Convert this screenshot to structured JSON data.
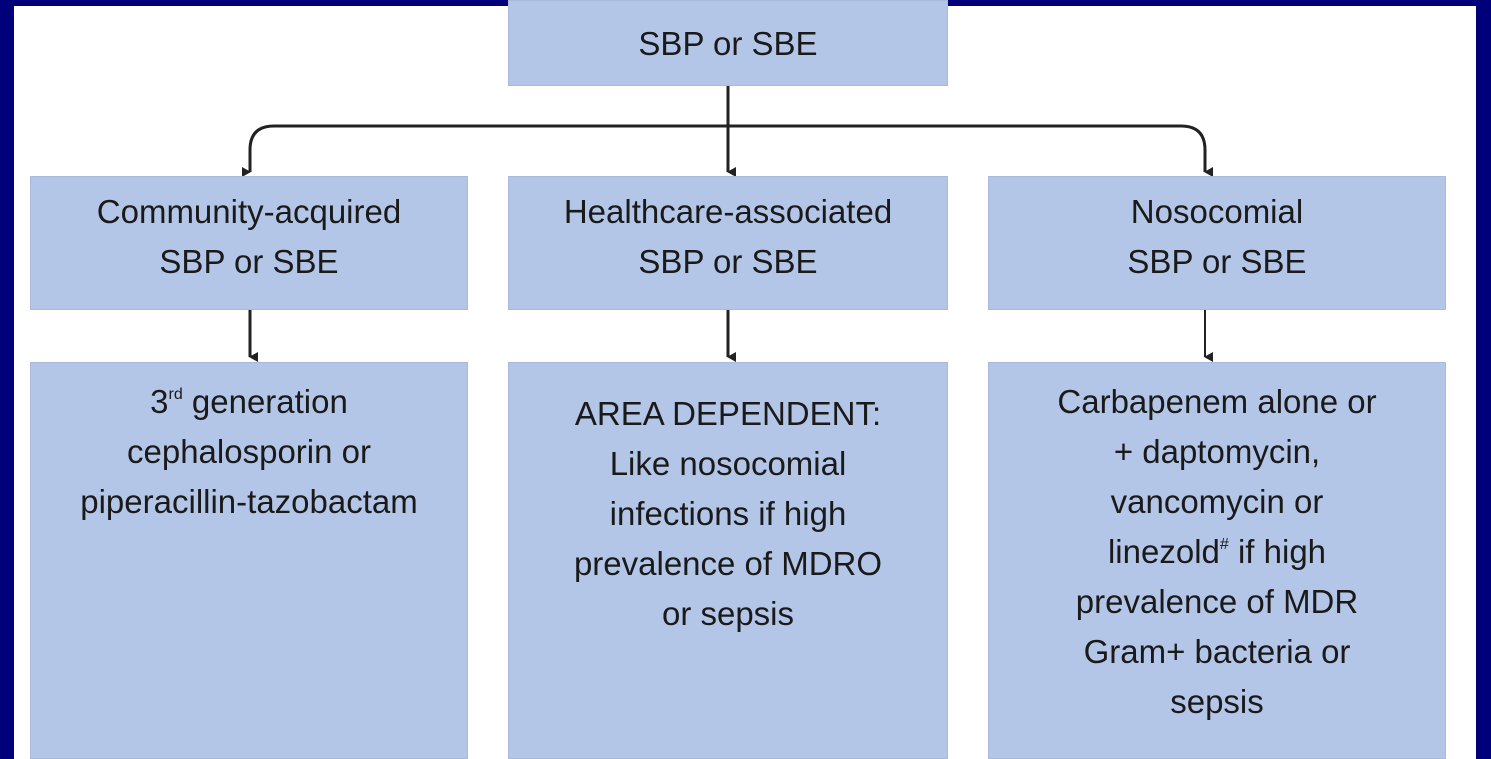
{
  "nodes": [
    {
      "lines": [
        "SBP or SBE"
      ]
    },
    {
      "lines": [
        "Community-acquired",
        "SBP or SBE"
      ]
    },
    {
      "lines": [
        "Healthcare-associated",
        "SBP or SBE"
      ]
    },
    {
      "lines": [
        "Nosocomial",
        "SBP or SBE"
      ]
    },
    {
      "lines": [
        {
          "text": "3",
          "sup": "rd",
          "rest": " generation"
        },
        "cephalosporin or",
        "piperacillin-tazobactam"
      ]
    },
    {
      "lines": [
        "AREA DEPENDENT:",
        "Like nosocomial",
        "infections if high",
        "prevalence of MDRO",
        "or sepsis"
      ]
    },
    {
      "lines": [
        "Carbapenem alone or",
        "+ daptomycin,",
        "vancomycin or",
        {
          "text": "linezold",
          "sup": "#",
          "rest": " if high"
        },
        "prevalence of MDR",
        "Gram+ bacteria or",
        "sepsis"
      ]
    }
  ]
}
